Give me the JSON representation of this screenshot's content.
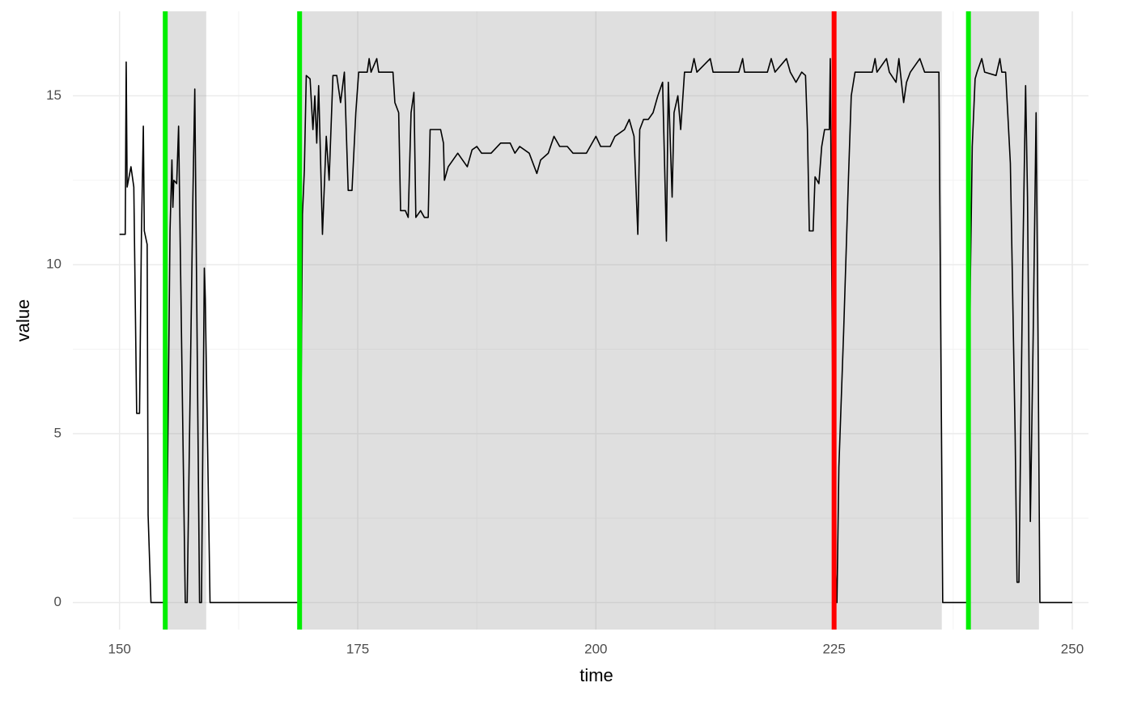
{
  "chart_data": {
    "type": "line",
    "x_label": "time",
    "y_label": "value",
    "xlim": [
      145.1,
      251.7
    ],
    "ylim": [
      -0.8,
      17.5
    ],
    "xticks": [
      150,
      175,
      200,
      225,
      250
    ],
    "yticks": [
      0,
      5,
      10,
      15
    ],
    "x_minor_ticks": [
      162.5,
      187.5,
      212.5,
      237.5
    ],
    "y_minor_ticks": [
      2.5,
      7.5,
      12.5
    ],
    "grid": true,
    "color": "#000000",
    "shaded_regions": [
      {
        "xmin": 154.7,
        "xmax": 159.1
      },
      {
        "xmin": 168.8,
        "xmax": 236.3
      },
      {
        "xmin": 239.0,
        "xmax": 246.5
      }
    ],
    "vlines": [
      {
        "x": 154.8,
        "color": "#00ee00"
      },
      {
        "x": 168.9,
        "color": "#00ee00"
      },
      {
        "x": 225.0,
        "color": "#ff0000"
      },
      {
        "x": 239.1,
        "color": "#00ee00"
      }
    ],
    "x": [
      150.0,
      150.6,
      150.7,
      150.8,
      151.2,
      151.5,
      151.8,
      152.1,
      152.3,
      152.5,
      152.6,
      152.9,
      153.0,
      153.3,
      154.9,
      155.3,
      155.5,
      155.6,
      155.7,
      156.0,
      156.2,
      156.5,
      156.9,
      157.1,
      157.7,
      157.9,
      158.4,
      158.6,
      158.9,
      159.0,
      159.5,
      168.9,
      169.2,
      169.4,
      169.6,
      170.0,
      170.3,
      170.5,
      170.7,
      170.9,
      171.3,
      171.7,
      172.0,
      172.4,
      172.8,
      173.2,
      173.6,
      174.0,
      174.4,
      174.8,
      175.1,
      176.0,
      176.2,
      176.4,
      177.0,
      177.2,
      178.7,
      178.9,
      179.3,
      179.5,
      180.0,
      180.3,
      180.6,
      180.9,
      181.1,
      181.6,
      182.0,
      182.4,
      182.6,
      183.7,
      184.0,
      184.1,
      184.5,
      185.0,
      185.5,
      186.0,
      186.5,
      187.0,
      187.5,
      188.0,
      189.0,
      190.0,
      191.0,
      191.5,
      192.0,
      193.0,
      193.8,
      194.2,
      195.0,
      195.6,
      196.2,
      197.0,
      197.6,
      199.0,
      200.0,
      200.5,
      201.5,
      202.0,
      203.0,
      203.5,
      204.0,
      204.4,
      204.6,
      205.0,
      205.5,
      206.0,
      206.5,
      207.0,
      207.4,
      207.6,
      208.0,
      208.2,
      208.6,
      208.9,
      209.3,
      210.0,
      210.3,
      210.6,
      212.0,
      212.3,
      215.0,
      215.4,
      215.6,
      218.0,
      218.4,
      218.8,
      220.0,
      220.4,
      221.0,
      221.6,
      222.0,
      222.2,
      222.4,
      222.8,
      223.0,
      223.4,
      223.7,
      224.0,
      224.5,
      224.6,
      224.8,
      225.0,
      225.3,
      225.5,
      226.0,
      226.5,
      226.8,
      227.2,
      229.0,
      229.3,
      229.5,
      230.5,
      230.8,
      231.5,
      231.8,
      232.3,
      232.6,
      233.0,
      234.0,
      234.5,
      236.0,
      236.4,
      239.0,
      239.3,
      239.5,
      239.8,
      240.0,
      240.5,
      240.8,
      242.0,
      242.4,
      242.6,
      243.0,
      243.5,
      244.0,
      244.2,
      244.4,
      244.8,
      245.1,
      245.3,
      245.6,
      245.9,
      246.2,
      246.4,
      246.6,
      250.0
    ],
    "values": [
      10.9,
      10.9,
      16.0,
      12.3,
      12.9,
      12.3,
      5.6,
      5.6,
      10.9,
      14.1,
      11.0,
      10.6,
      2.6,
      0,
      0,
      11,
      13.1,
      11.7,
      12.5,
      12.4,
      14.1,
      8,
      0,
      0,
      12,
      15.2,
      0,
      0,
      9.9,
      9,
      0,
      0,
      11.5,
      12.8,
      15.6,
      15.5,
      14.0,
      15.0,
      13.6,
      15.3,
      10.9,
      13.8,
      12.5,
      15.6,
      15.6,
      14.8,
      15.7,
      12.2,
      12.2,
      14.5,
      15.7,
      15.7,
      16.1,
      15.7,
      16.1,
      15.7,
      15.7,
      14.8,
      14.5,
      11.6,
      11.6,
      11.4,
      14.5,
      15.1,
      11.4,
      11.6,
      11.4,
      11.4,
      14.0,
      14.0,
      13.6,
      12.5,
      12.9,
      13.1,
      13.3,
      13.1,
      12.9,
      13.4,
      13.5,
      13.3,
      13.3,
      13.6,
      13.6,
      13.3,
      13.5,
      13.3,
      12.7,
      13.1,
      13.3,
      13.8,
      13.5,
      13.5,
      13.3,
      13.3,
      13.8,
      13.5,
      13.5,
      13.8,
      14.0,
      14.3,
      13.8,
      10.9,
      14.0,
      14.3,
      14.3,
      14.5,
      15.0,
      15.4,
      10.7,
      15.4,
      12,
      14.5,
      15.0,
      14.0,
      15.7,
      15.7,
      16.1,
      15.7,
      16.1,
      15.7,
      15.7,
      16.1,
      15.7,
      15.7,
      16.1,
      15.7,
      16.1,
      15.7,
      15.4,
      15.7,
      15.6,
      14.0,
      11.0,
      11.0,
      12.6,
      12.4,
      13.5,
      14.0,
      14.0,
      16.1,
      8,
      2,
      0,
      4,
      8,
      12.5,
      15.0,
      15.7,
      15.7,
      16.1,
      15.7,
      16.1,
      15.7,
      15.4,
      16.1,
      14.8,
      15.4,
      15.7,
      16.1,
      15.7,
      15.7,
      0,
      0,
      9.5,
      13.5,
      15.5,
      15.7,
      16.1,
      15.7,
      15.6,
      16.1,
      15.7,
      15.7,
      13.0,
      5,
      0.6,
      0.6,
      10,
      15.3,
      12,
      2.4,
      8,
      14.5,
      8,
      0,
      0
    ]
  }
}
